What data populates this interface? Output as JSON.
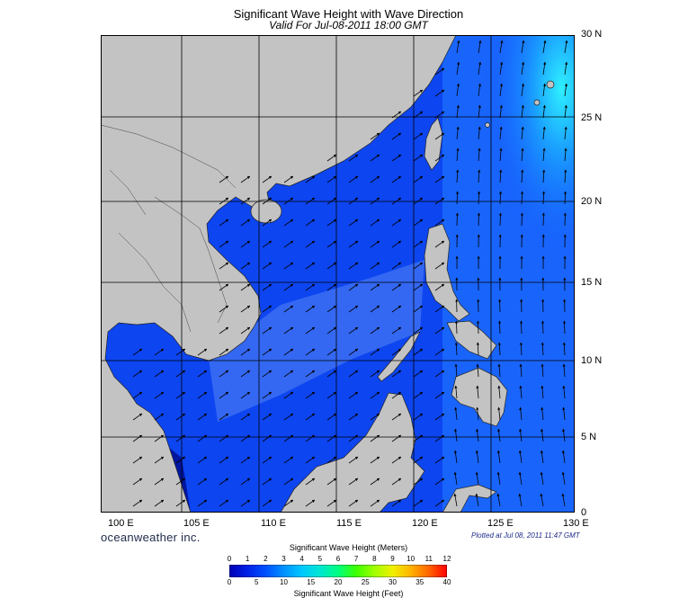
{
  "title": "Significant Wave Height with Wave Direction",
  "subtitle": "Valid For Jul-08-2011 18:00 GMT",
  "lat_labels": [
    "30 N",
    "25 N",
    "20 N",
    "15 N",
    "10 N",
    "5 N",
    "0"
  ],
  "lon_labels": [
    "100 E",
    "105 E",
    "110 E",
    "115 E",
    "120 E",
    "125 E",
    "130 E"
  ],
  "branding": "oceanweather inc.",
  "plotted": "Plotted at Jul 08, 2011 11:47 GMT",
  "colorbar": {
    "meters_label": "Significant Wave Height (Meters)",
    "feet_label": "Significant Wave Height (Feet)",
    "meters_ticks": [
      "0",
      "1",
      "2",
      "3",
      "4",
      "5",
      "6",
      "7",
      "8",
      "9",
      "10",
      "11",
      "12"
    ],
    "feet_ticks": [
      "0",
      "5",
      "10",
      "15",
      "20",
      "25",
      "30",
      "35",
      "40"
    ],
    "colors": [
      "#0000b4",
      "#0020e6",
      "#0050ff",
      "#0090ff",
      "#00c8ff",
      "#00e6d2",
      "#00ff80",
      "#3cff00",
      "#a0ff00",
      "#f0f000",
      "#ffb400",
      "#ff6400",
      "#ff0000"
    ]
  },
  "colors": {
    "land": "#c3c3c3",
    "deep_sea": "#0a3ce6",
    "swell_band": "#3c6cf0",
    "open_ocean": "#2a8cff",
    "high_swell": "#29e7ff",
    "grid": "#000000"
  }
}
